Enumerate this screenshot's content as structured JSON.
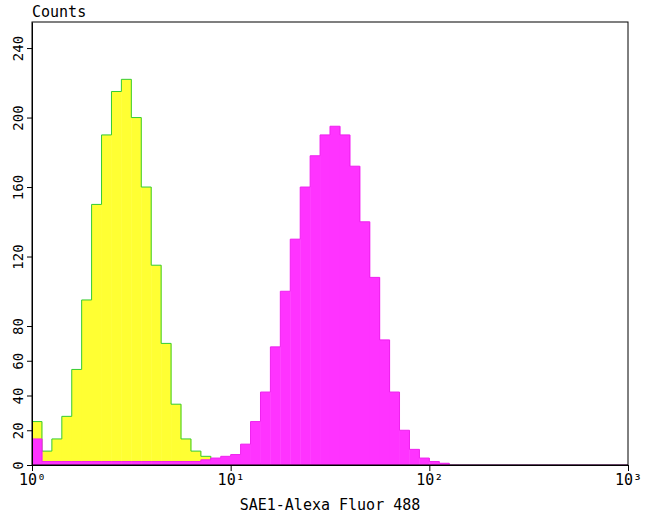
{
  "chart_data": {
    "type": "histogram",
    "x_label": "SAE1-Alexa Fluor 488",
    "y_label": "Counts",
    "log": "x",
    "grid": false,
    "xlim": [
      1,
      1000
    ],
    "xticks": [
      {
        "value": 1,
        "label": "10⁰"
      },
      {
        "value": 10,
        "label": "10¹"
      },
      {
        "value": 100,
        "label": "10²"
      },
      {
        "value": 1000,
        "label": "10³"
      }
    ],
    "ylim": [
      0,
      255
    ],
    "yticks": [
      0,
      20,
      40,
      60,
      80,
      120,
      160,
      200,
      240
    ],
    "bins": [
      1,
      1.122,
      1.259,
      1.413,
      1.585,
      1.778,
      1.995,
      2.239,
      2.512,
      2.818,
      3.162,
      3.548,
      3.981,
      4.467,
      5.012,
      5.623,
      6.31,
      7.079,
      7.943,
      8.913,
      10,
      11.22,
      12.59,
      14.13,
      15.85,
      17.78,
      19.95,
      22.39,
      25.12,
      28.18,
      31.62,
      35.48,
      39.81,
      44.67,
      50.12,
      56.23,
      63.1,
      70.79,
      79.43,
      89.13,
      100,
      112.2,
      125.9,
      141.3,
      158.5,
      177.8,
      199.5,
      223.9,
      251.2,
      281.8,
      316.2,
      354.8,
      398.1,
      446.7,
      501.2,
      562.3,
      631,
      707.9,
      794.3,
      891.3,
      1000
    ],
    "series": [
      {
        "color": "#ffff33",
        "values": [
          25,
          8,
          15,
          28,
          55,
          95,
          150,
          190,
          215,
          222,
          200,
          160,
          115,
          70,
          35,
          15,
          8,
          5,
          3,
          2,
          1,
          1,
          1,
          0,
          0,
          0,
          0,
          0,
          0,
          0,
          0,
          0,
          0,
          0,
          0,
          0,
          0,
          0,
          0,
          0,
          0,
          0,
          0,
          0,
          0,
          0,
          0,
          0,
          0,
          0,
          0,
          0,
          0,
          0,
          0,
          0,
          0,
          0,
          0,
          0
        ]
      },
      {
        "color": "#ff33ff",
        "values": [
          15,
          2,
          2,
          2,
          2,
          2,
          2,
          2,
          2,
          2,
          2,
          2,
          2,
          2,
          2,
          2,
          2,
          3,
          4,
          5,
          6,
          12,
          25,
          42,
          68,
          100,
          130,
          160,
          178,
          190,
          195,
          190,
          172,
          140,
          108,
          72,
          42,
          20,
          9,
          4,
          2,
          1,
          0,
          0,
          0,
          0,
          0,
          0,
          0,
          0,
          0,
          0,
          0,
          0,
          0,
          0,
          0,
          0,
          0,
          0
        ]
      }
    ]
  }
}
